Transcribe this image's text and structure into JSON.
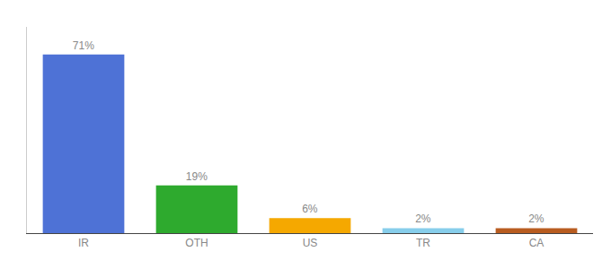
{
  "chart_data": {
    "type": "bar",
    "categories": [
      "IR",
      "OTH",
      "US",
      "TR",
      "CA"
    ],
    "values": [
      71,
      19,
      6,
      2,
      2
    ],
    "value_labels": [
      "71%",
      "19%",
      "6%",
      "2%",
      "2%"
    ],
    "colors": [
      "#4e72d6",
      "#2eaa2e",
      "#f5a800",
      "#87ceeb",
      "#b85c20"
    ],
    "ylim": [
      0,
      82
    ],
    "grid": false,
    "data_labels": true,
    "tick_labels": "x"
  }
}
